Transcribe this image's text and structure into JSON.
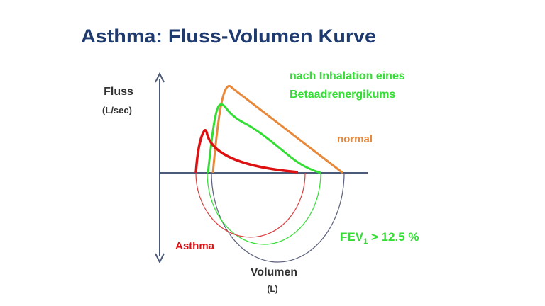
{
  "title": "Asthma: Fluss-Volumen Kurve",
  "y_axis": {
    "label": "Fluss",
    "unit": "(L/sec)"
  },
  "x_axis": {
    "label": "Volumen",
    "unit": "(L)"
  },
  "annotations": {
    "inhalation_line1": "nach Inhalation eines",
    "inhalation_line2": "Betaadrenergikums",
    "normal": "normal",
    "asthma": "Asthma",
    "fev": {
      "base": "FEV",
      "subscript": "1",
      "rest": " > 12.5 %"
    }
  }
}
